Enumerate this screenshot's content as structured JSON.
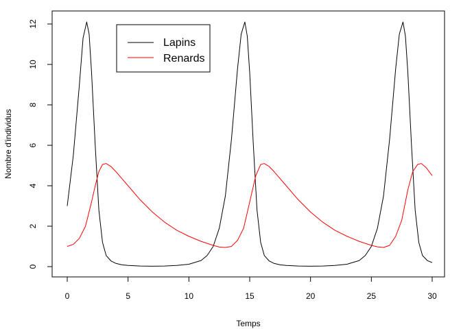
{
  "chart_data": {
    "type": "line",
    "xlabel": "Temps",
    "ylabel": "Nombre d'individus",
    "xlim": [
      0,
      30
    ],
    "ylim": [
      0,
      12
    ],
    "xticks": [
      0,
      5,
      10,
      15,
      20,
      25,
      30
    ],
    "yticks": [
      0,
      2,
      4,
      6,
      8,
      10,
      12
    ],
    "grid": false,
    "legend_position": "top-left",
    "series": [
      {
        "name": "Lapins",
        "color": "#000000",
        "x": [
          0,
          0.5,
          1,
          1.3,
          1.6,
          1.8,
          2,
          2.3,
          2.6,
          2.9,
          3.2,
          3.6,
          4,
          4.5,
          5,
          6,
          7,
          8,
          9,
          10,
          11,
          11.5,
          12,
          12.5,
          13,
          13.5,
          14,
          14.3,
          14.6,
          14.8,
          15,
          15.3,
          15.6,
          15.9,
          16.2,
          16.6,
          17,
          17.5,
          18,
          19,
          20,
          21,
          22,
          23,
          24,
          24.5,
          25,
          25.5,
          26,
          26.5,
          27,
          27.3,
          27.6,
          27.8,
          28,
          28.3,
          28.6,
          28.9,
          29.2,
          29.6,
          30
        ],
        "values": [
          3.0,
          5.5,
          9.0,
          11.3,
          12.1,
          11.5,
          9.6,
          6.0,
          2.8,
          1.2,
          0.55,
          0.28,
          0.16,
          0.09,
          0.06,
          0.03,
          0.02,
          0.03,
          0.06,
          0.12,
          0.3,
          0.55,
          1.0,
          1.9,
          3.5,
          6.3,
          9.8,
          11.5,
          12.1,
          11.4,
          9.6,
          6.0,
          2.8,
          1.2,
          0.55,
          0.28,
          0.16,
          0.09,
          0.06,
          0.03,
          0.02,
          0.03,
          0.06,
          0.12,
          0.3,
          0.55,
          1.0,
          1.9,
          3.5,
          6.3,
          9.8,
          11.5,
          12.1,
          11.4,
          9.6,
          6.0,
          2.8,
          1.2,
          0.55,
          0.3,
          0.2
        ]
      },
      {
        "name": "Renards",
        "color": "#ff0000",
        "x": [
          0,
          0.5,
          1,
          1.5,
          2,
          2.3,
          2.6,
          2.9,
          3.2,
          3.6,
          4,
          5,
          6,
          7,
          8,
          9,
          10,
          11,
          12,
          12.5,
          13,
          13.5,
          14,
          14.5,
          15,
          15.5,
          15.9,
          16.2,
          16.6,
          17,
          18,
          19,
          20,
          21,
          22,
          23,
          24,
          25,
          25.5,
          26,
          26.5,
          27,
          27.5,
          28,
          28.4,
          28.8,
          29.1,
          29.5,
          30
        ],
        "values": [
          1.0,
          1.1,
          1.4,
          2.0,
          3.2,
          4.0,
          4.7,
          5.05,
          5.1,
          4.95,
          4.7,
          4.0,
          3.3,
          2.7,
          2.2,
          1.8,
          1.5,
          1.25,
          1.05,
          0.97,
          0.95,
          1.0,
          1.3,
          1.9,
          3.2,
          4.5,
          5.05,
          5.1,
          4.95,
          4.7,
          4.0,
          3.3,
          2.7,
          2.2,
          1.8,
          1.5,
          1.25,
          1.05,
          0.98,
          0.95,
          1.05,
          1.5,
          2.3,
          3.8,
          4.7,
          5.05,
          5.1,
          4.9,
          4.5
        ]
      }
    ]
  }
}
